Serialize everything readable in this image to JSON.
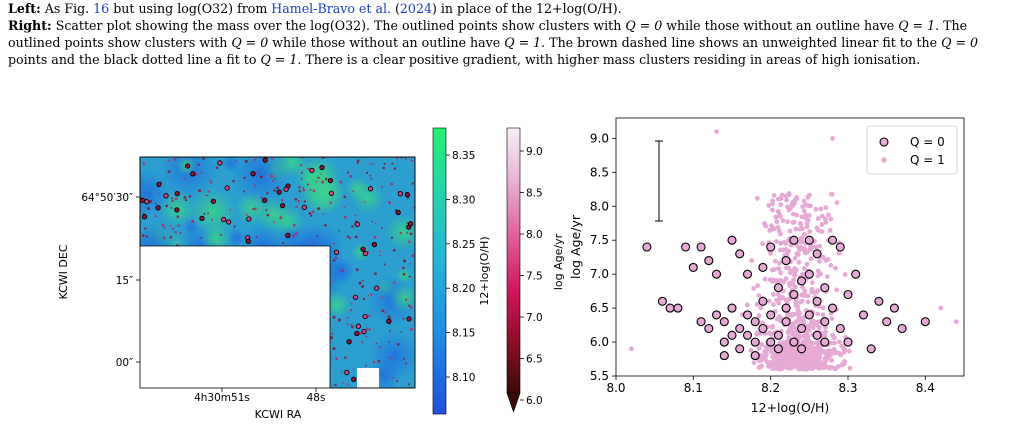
{
  "caption": {
    "left_label": "Left:",
    "left_text_1": " As Fig. ",
    "left_figref": "16",
    "left_text_2": " but using log(O32) from ",
    "left_cite": "Hamel-Bravo et al.",
    "left_text_3": " (",
    "left_year": "2024",
    "left_text_4": ") in place of the 12+log(O/H).",
    "right_label": "Right:",
    "right_text_1": " Scatter plot showing the mass over the log(O32). The outlined points show clusters with ",
    "right_q0_a": "Q = 0",
    "right_text_2": " while those without an outline have ",
    "right_q1_a": "Q = 1",
    "right_text_3": ". The outlined points show clusters with ",
    "right_q0_b": "Q = 0",
    "right_text_4": " while those without an outline have ",
    "right_q1_b": "Q = 1",
    "right_text_5": ". The brown dashed line shows an unweighted linear fit to the ",
    "right_q0_c": "Q = 0",
    "right_text_6": " points and the black dotted line a fit to ",
    "right_q1_c": "Q = 1",
    "right_text_7": ". There is a clear positive gradient, with higher mass clusters residing in areas of high ionisation."
  },
  "colors": {
    "link": "#1a3cc8",
    "pink": "#e6a8d4",
    "map_base": "#2a9fd0",
    "map_green": "#3ad28a"
  },
  "map_panel": {
    "xlabel": "KCWI RA",
    "ylabel": "KCWI DEC",
    "x_ticks": [
      "4h30m51s",
      "48s"
    ],
    "y_ticks": [
      "64°50′30″",
      "15″",
      "00″"
    ]
  },
  "colorbar_oh": {
    "label": "12+log(O/H)",
    "ticks": [
      "8.35",
      "8.30",
      "8.25",
      "8.20",
      "8.15",
      "8.10"
    ]
  },
  "colorbar_age": {
    "label": "log Age/yr",
    "ticks": [
      "9.0",
      "8.5",
      "8.0",
      "7.5",
      "7.0",
      "6.5",
      "6.0"
    ]
  },
  "chart_data": {
    "type": "scatter",
    "xlabel": "12+log(O/H)",
    "ylabel": "log Age/yr",
    "xlim": [
      8.0,
      8.45
    ],
    "ylim": [
      5.5,
      9.3
    ],
    "x_ticks": [
      "8.0",
      "8.1",
      "8.2",
      "8.3",
      "8.4"
    ],
    "y_ticks": [
      "5.5",
      "6.0",
      "6.5",
      "7.0",
      "7.5",
      "8.0",
      "8.5",
      "9.0"
    ],
    "legend_placement": "top-right",
    "series": [
      {
        "name": "Q = 0",
        "style": "outlined",
        "points": [
          [
            8.04,
            7.4
          ],
          [
            8.06,
            6.6
          ],
          [
            8.07,
            6.5
          ],
          [
            8.08,
            6.5
          ],
          [
            8.09,
            7.4
          ],
          [
            8.1,
            7.1
          ],
          [
            8.11,
            7.4
          ],
          [
            8.11,
            6.3
          ],
          [
            8.12,
            6.2
          ],
          [
            8.12,
            7.2
          ],
          [
            8.13,
            6.4
          ],
          [
            8.13,
            7.0
          ],
          [
            8.14,
            6.0
          ],
          [
            8.14,
            6.3
          ],
          [
            8.14,
            5.8
          ],
          [
            8.15,
            7.5
          ],
          [
            8.15,
            6.5
          ],
          [
            8.15,
            6.1
          ],
          [
            8.16,
            7.3
          ],
          [
            8.16,
            6.2
          ],
          [
            8.16,
            5.9
          ],
          [
            8.17,
            6.4
          ],
          [
            8.17,
            6.1
          ],
          [
            8.17,
            7.0
          ],
          [
            8.18,
            6.3
          ],
          [
            8.18,
            6.0
          ],
          [
            8.18,
            5.8
          ],
          [
            8.19,
            6.6
          ],
          [
            8.19,
            6.2
          ],
          [
            8.19,
            7.1
          ],
          [
            8.2,
            6.4
          ],
          [
            8.2,
            6.0
          ],
          [
            8.2,
            7.4
          ],
          [
            8.21,
            6.8
          ],
          [
            8.21,
            6.1
          ],
          [
            8.21,
            5.9
          ],
          [
            8.22,
            6.3
          ],
          [
            8.22,
            7.2
          ],
          [
            8.22,
            6.5
          ],
          [
            8.23,
            6.0
          ],
          [
            8.23,
            6.7
          ],
          [
            8.23,
            7.5
          ],
          [
            8.24,
            6.2
          ],
          [
            8.24,
            6.9
          ],
          [
            8.24,
            5.9
          ],
          [
            8.25,
            6.4
          ],
          [
            8.25,
            7.0
          ],
          [
            8.25,
            7.5
          ],
          [
            8.26,
            6.1
          ],
          [
            8.26,
            6.6
          ],
          [
            8.26,
            7.3
          ],
          [
            8.27,
            6.3
          ],
          [
            8.27,
            6.0
          ],
          [
            8.27,
            6.8
          ],
          [
            8.28,
            7.5
          ],
          [
            8.28,
            6.5
          ],
          [
            8.29,
            7.4
          ],
          [
            8.29,
            6.2
          ],
          [
            8.3,
            6.0
          ],
          [
            8.3,
            6.7
          ],
          [
            8.31,
            7.0
          ],
          [
            8.32,
            6.4
          ],
          [
            8.33,
            5.9
          ],
          [
            8.34,
            6.6
          ],
          [
            8.35,
            6.3
          ],
          [
            8.36,
            6.5
          ],
          [
            8.37,
            6.2
          ],
          [
            8.4,
            6.3
          ]
        ]
      },
      {
        "name": "Q = 1",
        "style": "filled",
        "count": 800,
        "x_range": [
          8.02,
          8.45
        ],
        "y_range": [
          5.6,
          8.3
        ]
      }
    ],
    "annotation": "error bar at x=8.06 spanning y=7.9 to 9.2"
  }
}
